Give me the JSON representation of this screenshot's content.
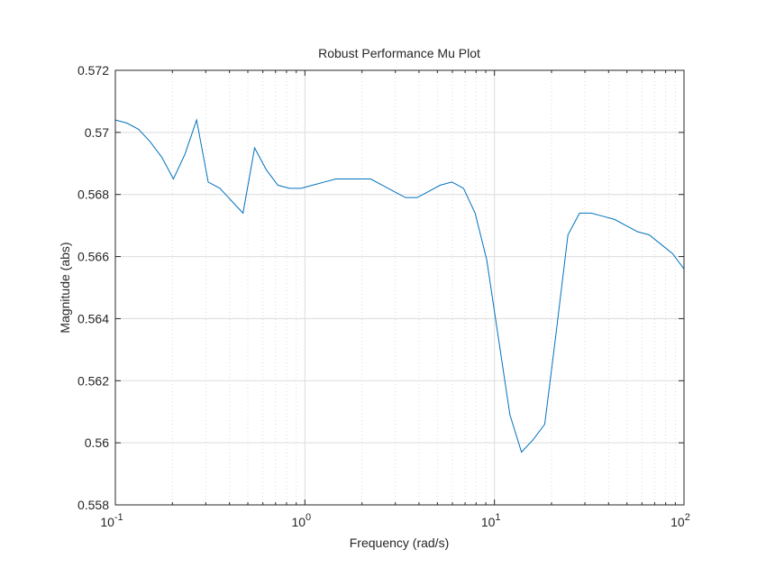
{
  "chart_data": {
    "type": "line",
    "title": "Robust Performance Mu Plot",
    "x_label": "Frequency  (rad/s)",
    "y_label": "Magnitude (abs)",
    "x_scale": "log",
    "grid": true,
    "minor_grid": true,
    "xlim": [
      0.1,
      100
    ],
    "ylim": [
      0.558,
      0.572
    ],
    "xticks": [
      {
        "value": 0.1,
        "label": "10",
        "exponent": "-1"
      },
      {
        "value": 1,
        "label": "10",
        "exponent": "0"
      },
      {
        "value": 10,
        "label": "10",
        "exponent": "1"
      },
      {
        "value": 100,
        "label": "10",
        "exponent": "2"
      }
    ],
    "yticks": [
      0.558,
      0.56,
      0.562,
      0.564,
      0.566,
      0.568,
      0.57,
      0.572
    ],
    "x": [
      0.1,
      0.1151,
      0.1326,
      0.1526,
      0.1758,
      0.2024,
      0.233,
      0.2683,
      0.3089,
      0.3556,
      0.4095,
      0.4715,
      0.5429,
      0.6251,
      0.7197,
      0.8286,
      0.9541,
      1.099,
      1.265,
      1.456,
      1.677,
      1.931,
      2.223,
      2.56,
      2.947,
      3.393,
      3.907,
      4.498,
      5.179,
      5.964,
      6.866,
      7.906,
      9.103,
      10.48,
      12.07,
      13.89,
      16.0,
      18.42,
      21.21,
      24.42,
      28.12,
      32.37,
      37.28,
      42.92,
      49.42,
      56.9,
      65.51,
      75.43,
      86.85,
      100
    ],
    "series": [
      {
        "name": "mu",
        "color": "#0072bd",
        "values": [
          0.5704,
          0.5703,
          0.5701,
          0.5697,
          0.5692,
          0.5685,
          0.5693,
          0.5704,
          0.5684,
          0.5682,
          0.5678,
          0.5674,
          0.5695,
          0.5688,
          0.5683,
          0.5682,
          0.5682,
          0.5683,
          0.5684,
          0.5685,
          0.5685,
          0.5685,
          0.5685,
          0.5683,
          0.5681,
          0.5679,
          0.5679,
          0.5681,
          0.5683,
          0.5684,
          0.5682,
          0.5674,
          0.5659,
          0.5634,
          0.5609,
          0.5597,
          0.5601,
          0.5606,
          0.5636,
          0.5667,
          0.5674,
          0.5674,
          0.5673,
          0.5672,
          0.567,
          0.5668,
          0.5667,
          0.5664,
          0.5661,
          0.5656
        ]
      }
    ]
  }
}
